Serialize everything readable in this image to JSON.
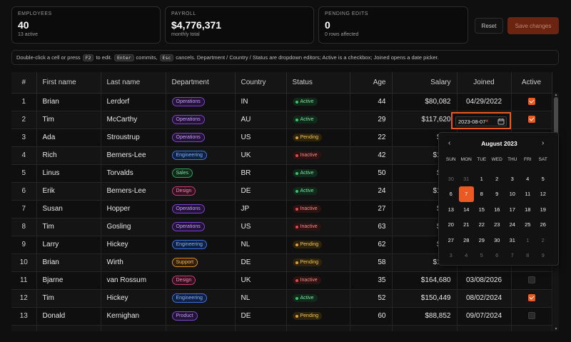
{
  "stats": [
    {
      "label": "EMPLOYEES",
      "value": "40",
      "sub": "13 active"
    },
    {
      "label": "PAYROLL",
      "value": "$4,776,371",
      "sub": "monthly total"
    },
    {
      "label": "PENDING EDITS",
      "value": "0",
      "sub": "0 rows affected"
    }
  ],
  "actions": {
    "reset": "Reset",
    "save": "Save changes"
  },
  "hint": {
    "part1": "Double-click a cell or press",
    "k1": "F2",
    "part2": "to edit.",
    "k2": "Enter",
    "part3": "commits,",
    "k3": "Esc",
    "part4": "cancels. Department / Country / Status are dropdown editors; Active is a checkbox; Joined opens a date picker."
  },
  "columns": [
    "#",
    "First name",
    "Last name",
    "Department",
    "Country",
    "Status",
    "Age",
    "Salary",
    "Joined",
    "Active"
  ],
  "colors": {
    "accent": "#ec5a24",
    "departments": {
      "Operations": {
        "bg": "#241338",
        "border": "#7c3fd0",
        "text": "#c59cf7"
      },
      "Engineering": {
        "bg": "#0f2140",
        "border": "#3e70d6",
        "text": "#86b2ff"
      },
      "Sales": {
        "bg": "#0f2a18",
        "border": "#2f9e57",
        "text": "#7fe0a2"
      },
      "Design": {
        "bg": "#33101f",
        "border": "#c43d70",
        "text": "#f58cb2"
      },
      "Support": {
        "bg": "#2e200a",
        "border": "#d68a1e",
        "text": "#f5b85a"
      },
      "Product": {
        "bg": "#221337",
        "border": "#7b47d1",
        "text": "#c49af5"
      }
    }
  },
  "rows": [
    {
      "n": "1",
      "first": "Brian",
      "last": "Lerdorf",
      "dept": "Operations",
      "country": "IN",
      "status": "Active",
      "age": "44",
      "salary": "$80,082",
      "joined": "04/29/2022",
      "active": true
    },
    {
      "n": "2",
      "first": "Tim",
      "last": "McCarthy",
      "dept": "Operations",
      "country": "AU",
      "status": "Active",
      "age": "29",
      "salary": "$117,620",
      "joined": "",
      "active": true
    },
    {
      "n": "3",
      "first": "Ada",
      "last": "Stroustrup",
      "dept": "Operations",
      "country": "US",
      "status": "Pending",
      "age": "22",
      "salary": "$79,",
      "joined": "",
      "active": null
    },
    {
      "n": "4",
      "first": "Rich",
      "last": "Berners-Lee",
      "dept": "Engineering",
      "country": "UK",
      "status": "Inactive",
      "age": "42",
      "salary": "$168,",
      "joined": "",
      "active": null
    },
    {
      "n": "5",
      "first": "Linus",
      "last": "Torvalds",
      "dept": "Sales",
      "country": "BR",
      "status": "Active",
      "age": "50",
      "salary": "$69,",
      "joined": "",
      "active": null
    },
    {
      "n": "6",
      "first": "Erik",
      "last": "Berners-Lee",
      "dept": "Design",
      "country": "DE",
      "status": "Active",
      "age": "24",
      "salary": "$143,",
      "joined": "",
      "active": null
    },
    {
      "n": "7",
      "first": "Susan",
      "last": "Hopper",
      "dept": "Operations",
      "country": "JP",
      "status": "Inactive",
      "age": "27",
      "salary": "$53,",
      "joined": "",
      "active": null
    },
    {
      "n": "8",
      "first": "Tim",
      "last": "Gosling",
      "dept": "Operations",
      "country": "US",
      "status": "Inactive",
      "age": "63",
      "salary": "$80,",
      "joined": "",
      "active": null
    },
    {
      "n": "9",
      "first": "Larry",
      "last": "Hickey",
      "dept": "Engineering",
      "country": "NL",
      "status": "Pending",
      "age": "62",
      "salary": "$81,",
      "joined": "",
      "active": null
    },
    {
      "n": "10",
      "first": "Brian",
      "last": "Wirth",
      "dept": "Support",
      "country": "DE",
      "status": "Pending",
      "age": "58",
      "salary": "$150,",
      "joined": "",
      "active": null
    },
    {
      "n": "11",
      "first": "Bjarne",
      "last": "van Rossum",
      "dept": "Design",
      "country": "UK",
      "status": "Inactive",
      "age": "35",
      "salary": "$164,680",
      "joined": "03/08/2026",
      "active": false
    },
    {
      "n": "12",
      "first": "Tim",
      "last": "Hickey",
      "dept": "Engineering",
      "country": "NL",
      "status": "Active",
      "age": "52",
      "salary": "$150,449",
      "joined": "08/02/2024",
      "active": true
    },
    {
      "n": "13",
      "first": "Donald",
      "last": "Kernighan",
      "dept": "Product",
      "country": "DE",
      "status": "Pending",
      "age": "60",
      "salary": "$88,852",
      "joined": "09/07/2024",
      "active": false
    },
    {
      "n": "",
      "first": "",
      "last": "",
      "dept": "",
      "country": "",
      "status": "",
      "age": "",
      "salary": "",
      "joined": "",
      "active": null
    }
  ],
  "date_editor": {
    "value": "2023-08-07",
    "clear": "×"
  },
  "calendar": {
    "month": "August 2023",
    "prev": "‹",
    "next": "›",
    "weekdays": [
      "SUN",
      "MON",
      "TUE",
      "WED",
      "THU",
      "FRI",
      "SAT"
    ],
    "days": [
      {
        "d": "30",
        "muted": true
      },
      {
        "d": "31",
        "muted": true
      },
      {
        "d": "1"
      },
      {
        "d": "2"
      },
      {
        "d": "3"
      },
      {
        "d": "4"
      },
      {
        "d": "5"
      },
      {
        "d": "6"
      },
      {
        "d": "7",
        "selected": true
      },
      {
        "d": "8"
      },
      {
        "d": "9"
      },
      {
        "d": "10"
      },
      {
        "d": "11"
      },
      {
        "d": "12"
      },
      {
        "d": "13"
      },
      {
        "d": "14"
      },
      {
        "d": "15"
      },
      {
        "d": "16"
      },
      {
        "d": "17"
      },
      {
        "d": "18"
      },
      {
        "d": "19"
      },
      {
        "d": "20"
      },
      {
        "d": "21"
      },
      {
        "d": "22"
      },
      {
        "d": "23"
      },
      {
        "d": "24"
      },
      {
        "d": "25"
      },
      {
        "d": "26"
      },
      {
        "d": "27"
      },
      {
        "d": "28"
      },
      {
        "d": "29"
      },
      {
        "d": "30"
      },
      {
        "d": "31"
      },
      {
        "d": "1",
        "muted": true
      },
      {
        "d": "2",
        "muted": true
      },
      {
        "d": "3",
        "muted": true
      },
      {
        "d": "4",
        "muted": true
      },
      {
        "d": "5",
        "muted": true
      },
      {
        "d": "6",
        "muted": true
      },
      {
        "d": "7",
        "muted": true
      },
      {
        "d": "8",
        "muted": true
      },
      {
        "d": "9",
        "muted": true
      }
    ]
  }
}
